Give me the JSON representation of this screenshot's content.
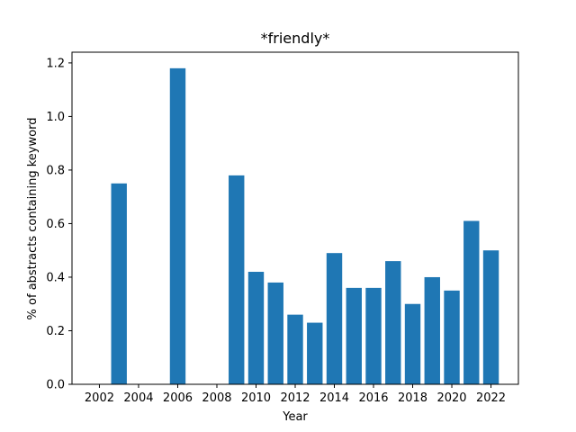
{
  "chart_data": {
    "type": "bar",
    "title": "*friendly*",
    "xlabel": "Year",
    "ylabel": "% of abstracts containing keyword",
    "x": [
      2003,
      2006,
      2009,
      2010,
      2011,
      2012,
      2013,
      2014,
      2015,
      2016,
      2017,
      2018,
      2019,
      2020,
      2021,
      2022
    ],
    "values": [
      0.75,
      1.18,
      0.78,
      0.42,
      0.38,
      0.26,
      0.23,
      0.49,
      0.36,
      0.36,
      0.46,
      0.3,
      0.4,
      0.35,
      0.61,
      0.5
    ],
    "xticks": [
      2002,
      2004,
      2006,
      2008,
      2010,
      2012,
      2014,
      2016,
      2018,
      2020,
      2022
    ],
    "yticks": [
      0.0,
      0.2,
      0.4,
      0.6,
      0.8,
      1.0,
      1.2
    ],
    "xlim": [
      2000.6,
      2023.4
    ],
    "ylim": [
      0,
      1.24
    ],
    "bar_color": "#1f77b4",
    "grid": false,
    "legend": "none"
  }
}
